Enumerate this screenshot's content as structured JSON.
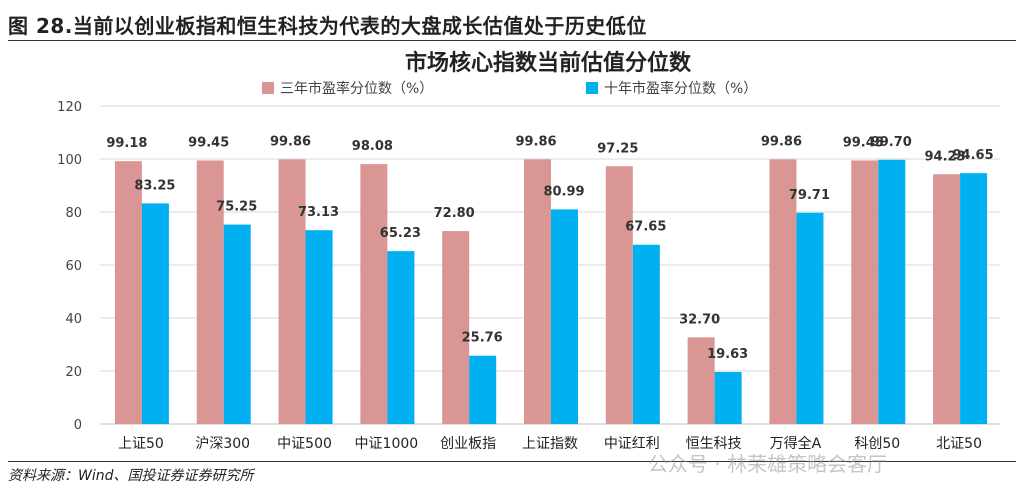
{
  "caption": "图 28.当前以创业板指和恒生科技为代表的大盘成长估值处于历史低位",
  "source": "资料来源：Wind、国投证券证券研究所",
  "watermark": "公众号 · 林荣雄策略会客厅",
  "colors": {
    "series1": "#d99694",
    "series2": "#00b0f0",
    "highlight": "#ff0000",
    "grid": "#d9d9d9"
  },
  "chart_data": {
    "type": "bar",
    "title": "市场核心指数当前估值分位数",
    "categories": [
      "上证50",
      "沪深300",
      "中证500",
      "中证1000",
      "创业板指",
      "上证指数",
      "中证红利",
      "恒生科技",
      "万得全A",
      "科创50",
      "北证50"
    ],
    "series": [
      {
        "name": "三年市盈率分位数（%）",
        "values": [
          99.18,
          99.45,
          99.86,
          98.08,
          72.8,
          99.86,
          97.25,
          32.7,
          99.86,
          99.45,
          94.23
        ]
      },
      {
        "name": "十年市盈率分位数（%）",
        "values": [
          83.25,
          75.25,
          73.13,
          65.23,
          25.76,
          80.99,
          67.65,
          19.63,
          79.71,
          99.7,
          94.65
        ]
      }
    ],
    "ylim": [
      0,
      120
    ],
    "yticks": [
      0,
      20,
      40,
      60,
      80,
      100,
      120
    ],
    "highlight_category": "创业板指",
    "grid": true,
    "legend": "top"
  }
}
